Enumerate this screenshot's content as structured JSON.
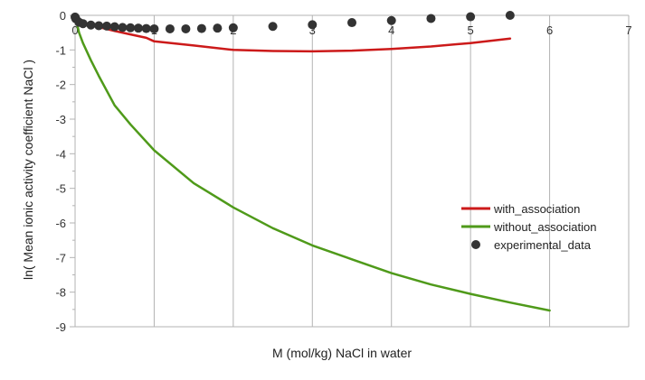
{
  "chart_data": {
    "type": "line",
    "xlabel": "M (mol/kg) NaCl in water",
    "ylabel": "ln( Mean ionic activity coefficient NaCl )",
    "xlim": [
      0,
      7
    ],
    "ylim": [
      -9,
      0
    ],
    "x_ticks": [
      "0",
      "1",
      "2",
      "3",
      "4",
      "5",
      "6",
      "7"
    ],
    "y_ticks": [
      "0",
      "-1",
      "-2",
      "-3",
      "-4",
      "-5",
      "-6",
      "-7",
      "-8",
      "-9"
    ],
    "grid": "vertical",
    "legend_position": "right",
    "series": [
      {
        "name": "with_association",
        "kind": "line",
        "color": "#cc1a1a",
        "points": [
          [
            0,
            0
          ],
          [
            0.02,
            -0.1
          ],
          [
            0.05,
            -0.15
          ],
          [
            0.1,
            -0.21
          ],
          [
            0.2,
            -0.28
          ],
          [
            0.3,
            -0.34
          ],
          [
            0.5,
            -0.45
          ],
          [
            0.7,
            -0.55
          ],
          [
            0.9,
            -0.65
          ],
          [
            1.0,
            -0.75
          ],
          [
            1.5,
            -0.87
          ],
          [
            2.0,
            -1.0
          ],
          [
            2.5,
            -1.03
          ],
          [
            3.0,
            -1.04
          ],
          [
            3.5,
            -1.02
          ],
          [
            4.0,
            -0.97
          ],
          [
            4.5,
            -0.9
          ],
          [
            5.0,
            -0.8
          ],
          [
            5.5,
            -0.67
          ]
        ]
      },
      {
        "name": "without_association",
        "kind": "line",
        "color": "#4f9a1a",
        "points": [
          [
            0,
            0
          ],
          [
            0.05,
            -0.5
          ],
          [
            0.1,
            -0.8
          ],
          [
            0.2,
            -1.3
          ],
          [
            0.3,
            -1.75
          ],
          [
            0.5,
            -2.6
          ],
          [
            0.7,
            -3.15
          ],
          [
            1.0,
            -3.9
          ],
          [
            1.5,
            -4.85
          ],
          [
            2.0,
            -5.55
          ],
          [
            2.5,
            -6.15
          ],
          [
            3.0,
            -6.65
          ],
          [
            3.5,
            -7.05
          ],
          [
            4.0,
            -7.45
          ],
          [
            4.5,
            -7.78
          ],
          [
            5.0,
            -8.05
          ],
          [
            5.5,
            -8.3
          ],
          [
            6.0,
            -8.53
          ]
        ]
      },
      {
        "name": "experimental_data",
        "kind": "scatter",
        "color": "#333333",
        "points": [
          [
            0,
            -0.05
          ],
          [
            0.01,
            -0.1
          ],
          [
            0.05,
            -0.2
          ],
          [
            0.1,
            -0.24
          ],
          [
            0.2,
            -0.28
          ],
          [
            0.3,
            -0.3
          ],
          [
            0.4,
            -0.31
          ],
          [
            0.5,
            -0.33
          ],
          [
            0.6,
            -0.35
          ],
          [
            0.7,
            -0.36
          ],
          [
            0.8,
            -0.37
          ],
          [
            0.9,
            -0.38
          ],
          [
            1.0,
            -0.39
          ],
          [
            1.2,
            -0.39
          ],
          [
            1.4,
            -0.39
          ],
          [
            1.6,
            -0.38
          ],
          [
            1.8,
            -0.37
          ],
          [
            2.0,
            -0.36
          ],
          [
            2.5,
            -0.32
          ],
          [
            3.0,
            -0.27
          ],
          [
            3.5,
            -0.21
          ],
          [
            4.0,
            -0.15
          ],
          [
            4.5,
            -0.09
          ],
          [
            5.0,
            -0.04
          ],
          [
            5.5,
            0.0
          ]
        ]
      }
    ]
  }
}
